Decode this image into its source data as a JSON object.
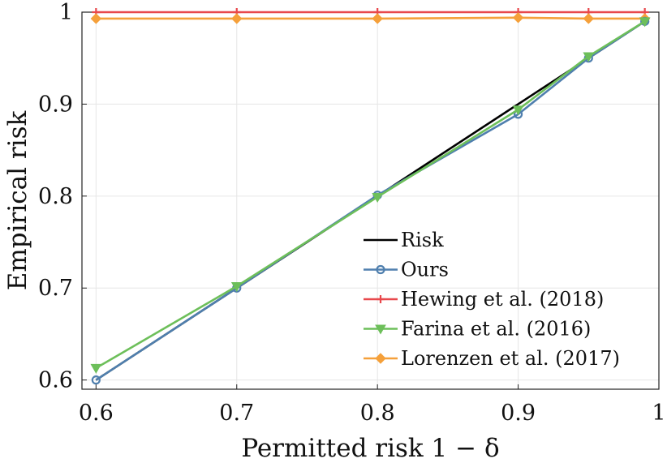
{
  "chart_data": {
    "type": "line",
    "title": "",
    "xlabel": "Permitted risk 1 − δ",
    "ylabel": "Empirical risk",
    "xlim": [
      0.59,
      1.0
    ],
    "ylim": [
      0.59,
      1.0
    ],
    "x_ticks": [
      0.6,
      0.7,
      0.8,
      0.9,
      1.0
    ],
    "x_tick_labels": [
      "0.6",
      "0.7",
      "0.8",
      "0.9",
      "1"
    ],
    "y_ticks": [
      0.6,
      0.7,
      0.8,
      0.9,
      1.0
    ],
    "y_tick_labels": [
      "0.6",
      "0.7",
      "0.8",
      "0.9",
      "1"
    ],
    "grid": true,
    "legend_position": "bottom-right",
    "series": [
      {
        "name": "Risk",
        "color": "#000000",
        "marker": "none",
        "x": [
          0.6,
          0.7,
          0.8,
          0.9,
          0.95,
          0.99
        ],
        "y": [
          0.6,
          0.7,
          0.8,
          0.9,
          0.95,
          0.99
        ]
      },
      {
        "name": "Ours",
        "color": "#4f7fae",
        "marker": "circle",
        "x": [
          0.6,
          0.7,
          0.8,
          0.9,
          0.95,
          0.99
        ],
        "y": [
          0.6,
          0.7,
          0.801,
          0.889,
          0.95,
          0.99
        ]
      },
      {
        "name": "Hewing et al. (2018)",
        "color": "#e8484c",
        "marker": "plus",
        "x": [
          0.6,
          0.7,
          0.8,
          0.9,
          0.95,
          0.99
        ],
        "y": [
          1.0,
          1.0,
          1.0,
          1.0,
          1.0,
          1.0
        ]
      },
      {
        "name": "Farina et al. (2016)",
        "color": "#6dbf5a",
        "marker": "triangle-down",
        "x": [
          0.6,
          0.7,
          0.8,
          0.9,
          0.95,
          0.99
        ],
        "y": [
          0.613,
          0.702,
          0.799,
          0.894,
          0.952,
          0.99
        ]
      },
      {
        "name": "Lorenzen et al. (2017)",
        "color": "#f5a03a",
        "marker": "diamond",
        "x": [
          0.6,
          0.7,
          0.8,
          0.9,
          0.95,
          0.99
        ],
        "y": [
          0.993,
          0.993,
          0.993,
          0.994,
          0.993,
          0.993
        ]
      }
    ]
  }
}
